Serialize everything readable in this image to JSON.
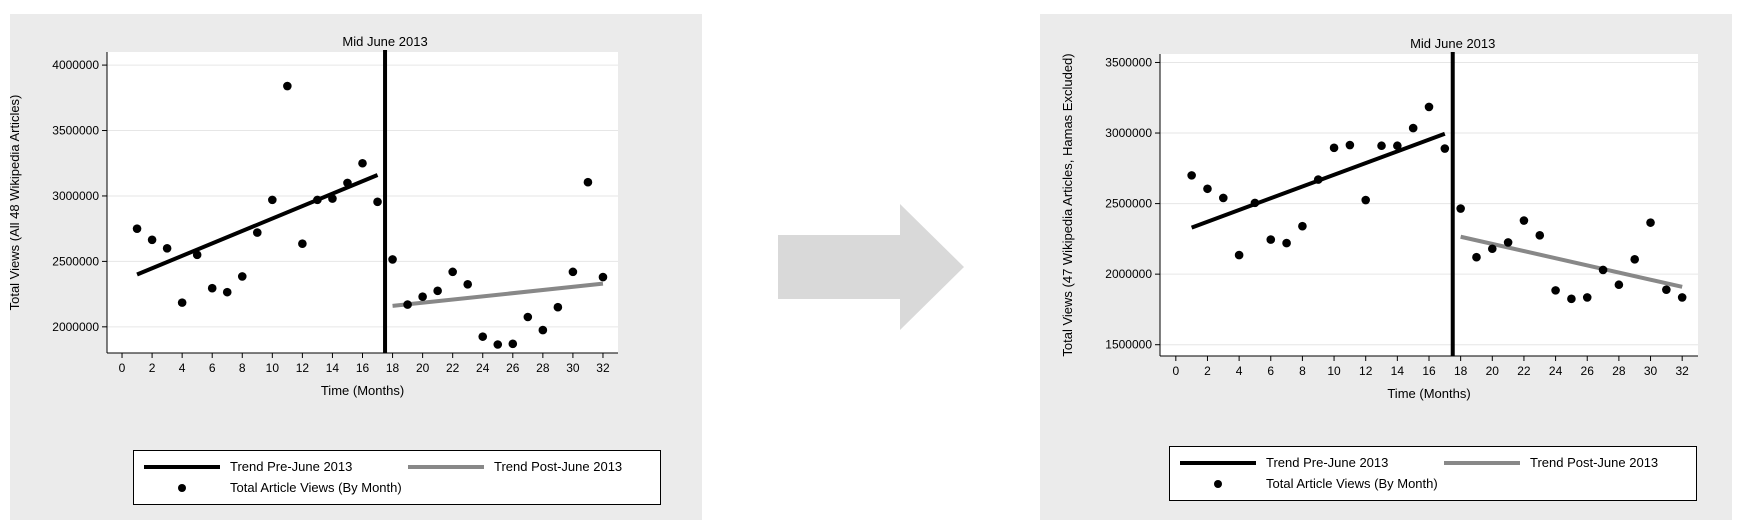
{
  "chart_data": [
    {
      "type": "scatter",
      "xlabel": "Time (Months)",
      "ylabel": "Total Views (All 48 Wikipedia Articles)",
      "xlim": [
        -1,
        33
      ],
      "ylim": [
        1800000,
        4100000
      ],
      "xticks": [
        0,
        2,
        4,
        6,
        8,
        10,
        12,
        14,
        16,
        18,
        20,
        22,
        24,
        26,
        28,
        30,
        32
      ],
      "yticks": [
        2000000,
        2500000,
        3000000,
        3500000,
        4000000
      ],
      "grid": "horizontal",
      "cutoff": {
        "x": 17.5,
        "label": "Mid June 2013"
      },
      "series": [
        {
          "name": "Total Article Views (By Month)",
          "type": "scatter",
          "x": [
            1,
            2,
            3,
            4,
            5,
            6,
            7,
            8,
            9,
            10,
            11,
            12,
            13,
            14,
            15,
            16,
            17,
            18,
            19,
            20,
            21,
            22,
            23,
            24,
            25,
            26,
            27,
            28,
            29,
            30,
            31,
            32
          ],
          "y": [
            2750000,
            2665000,
            2600000,
            2185000,
            2550000,
            2295000,
            2265000,
            2385000,
            2720000,
            2970000,
            3840000,
            2635000,
            2970000,
            2980000,
            3100000,
            3250000,
            2955000,
            2515000,
            2170000,
            2230000,
            2275000,
            2420000,
            2325000,
            1925000,
            1865000,
            1870000,
            2075000,
            1975000,
            2150000,
            2420000,
            3105000,
            2380000
          ]
        },
        {
          "name": "Trend Pre-June 2013",
          "type": "line",
          "x": [
            1,
            17
          ],
          "y": [
            2400000,
            3160000
          ]
        },
        {
          "name": "Trend Post-June 2013",
          "type": "line",
          "x": [
            18,
            32
          ],
          "y": [
            2160000,
            2330000
          ]
        }
      ],
      "legend": {
        "position": "bottom",
        "entries": [
          "Trend Pre-June 2013",
          "Trend Post-June 2013",
          "Total Article Views (By Month)"
        ]
      }
    },
    {
      "type": "scatter",
      "xlabel": "Time (Months)",
      "ylabel": "Total Views (47 Wikipedia Articles, Hamas Excluded)",
      "xlim": [
        -1,
        33
      ],
      "ylim": [
        1420000,
        3560000
      ],
      "xticks": [
        0,
        2,
        4,
        6,
        8,
        10,
        12,
        14,
        16,
        18,
        20,
        22,
        24,
        26,
        28,
        30,
        32
      ],
      "yticks": [
        1500000,
        2000000,
        2500000,
        3000000,
        3500000
      ],
      "grid": "horizontal",
      "cutoff": {
        "x": 17.5,
        "label": "Mid June 2013"
      },
      "series": [
        {
          "name": "Total Article Views (By Month)",
          "type": "scatter",
          "x": [
            1,
            2,
            3,
            4,
            5,
            6,
            7,
            8,
            9,
            10,
            11,
            12,
            13,
            14,
            15,
            16,
            17,
            18,
            19,
            20,
            21,
            22,
            23,
            24,
            25,
            26,
            27,
            28,
            29,
            30,
            31,
            32
          ],
          "y": [
            2700000,
            2605000,
            2540000,
            2135000,
            2505000,
            2245000,
            2220000,
            2340000,
            2670000,
            2895000,
            2915000,
            2525000,
            2910000,
            2910000,
            3035000,
            3185000,
            2890000,
            2465000,
            2120000,
            2180000,
            2225000,
            2380000,
            2275000,
            1885000,
            1825000,
            1835000,
            2030000,
            1925000,
            2105000,
            2365000,
            1890000,
            1835000
          ]
        },
        {
          "name": "Trend Pre-June 2013",
          "type": "line",
          "x": [
            1,
            17
          ],
          "y": [
            2330000,
            2995000
          ]
        },
        {
          "name": "Trend Post-June 2013",
          "type": "line",
          "x": [
            18,
            32
          ],
          "y": [
            2265000,
            1910000
          ]
        }
      ],
      "legend": {
        "position": "bottom",
        "entries": [
          "Trend Pre-June 2013",
          "Trend Post-June 2013",
          "Total Article Views (By Month)"
        ]
      }
    }
  ],
  "colors": {
    "pre_trend": "#000000",
    "post_trend": "#888888",
    "points": "#000000",
    "panel_bg": "#ebebeb",
    "arrow": "#d9d9d9"
  }
}
